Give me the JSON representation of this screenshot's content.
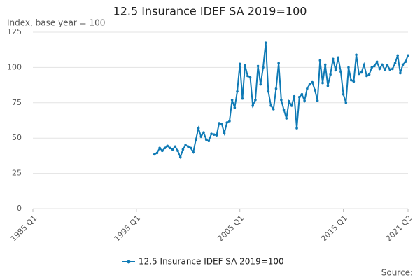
{
  "chart_data": {
    "type": "line",
    "title": "12.5 Insurance IDEF SA 2019=100",
    "subtitle": "Index, base year = 100",
    "source": "Source:",
    "categories": [
      "1985 Q1",
      null,
      null,
      null,
      null,
      null,
      null,
      null,
      null,
      null,
      null,
      null,
      null,
      null,
      null,
      null,
      null,
      null,
      null,
      null,
      null,
      null,
      null,
      null,
      null,
      null,
      null,
      null,
      null,
      null,
      null,
      null,
      null,
      null,
      null,
      null,
      null,
      null,
      null,
      null,
      "1995 Q1",
      null,
      null,
      null,
      null,
      null,
      null,
      null,
      null,
      null,
      null,
      null,
      null,
      null,
      null,
      null,
      null,
      null,
      null,
      null,
      null,
      null,
      null,
      null,
      null,
      null,
      null,
      null,
      null,
      null,
      null,
      null,
      null,
      null,
      null,
      null,
      null,
      null,
      null,
      null,
      "2005 Q1",
      null,
      null,
      null,
      null,
      null,
      null,
      null,
      null,
      null,
      null,
      null,
      null,
      null,
      null,
      null,
      null,
      null,
      null,
      null,
      null,
      null,
      null,
      null,
      null,
      null,
      null,
      null,
      null,
      null,
      null,
      null,
      null,
      null,
      null,
      null,
      null,
      null,
      null,
      null,
      "2015 Q1",
      null,
      null,
      null,
      null,
      null,
      null,
      null,
      null,
      null,
      null,
      null,
      null,
      null,
      null,
      null,
      null,
      null,
      null,
      null,
      null,
      null,
      null,
      null,
      null,
      "2021 Q2"
    ],
    "series": [
      {
        "name": "12.5 Insurance IDEF SA 2019=100",
        "color": "#0f7ab5",
        "values": [
          null,
          null,
          null,
          null,
          null,
          null,
          null,
          null,
          null,
          null,
          null,
          null,
          null,
          null,
          null,
          null,
          null,
          null,
          null,
          null,
          null,
          null,
          null,
          null,
          null,
          null,
          null,
          null,
          null,
          null,
          null,
          null,
          null,
          null,
          null,
          null,
          null,
          null,
          null,
          null,
          null,
          null,
          null,
          null,
          null,
          null,
          null,
          38.5,
          39.5,
          43,
          41,
          43,
          44.5,
          43,
          42,
          44,
          41,
          36.5,
          42,
          45,
          44,
          43,
          40,
          49,
          57,
          51,
          54,
          49,
          48,
          53,
          52.5,
          52,
          60.5,
          60,
          53.5,
          61,
          62,
          77,
          71.5,
          83,
          102.5,
          78,
          101.5,
          94,
          93,
          73,
          77,
          101,
          88,
          100,
          117.5,
          83,
          73,
          70.5,
          85,
          103,
          77,
          70,
          64,
          76,
          73,
          79.5,
          57,
          79,
          81,
          76.5,
          85,
          88,
          89.5,
          84,
          76.5,
          105,
          89,
          102,
          87,
          95,
          106,
          98,
          107,
          97,
          81,
          75,
          100,
          91,
          90,
          109,
          95.5,
          96.5,
          102,
          94,
          95,
          100,
          101,
          104,
          99,
          102,
          98.5,
          101.5,
          98.5,
          99,
          103,
          108.5,
          96,
          102,
          104,
          108.5
        ]
      }
    ],
    "ylim": [
      0,
      125
    ],
    "yticks": [
      0,
      25,
      50,
      75,
      100,
      125
    ],
    "grid": true,
    "legend": "bottom"
  }
}
